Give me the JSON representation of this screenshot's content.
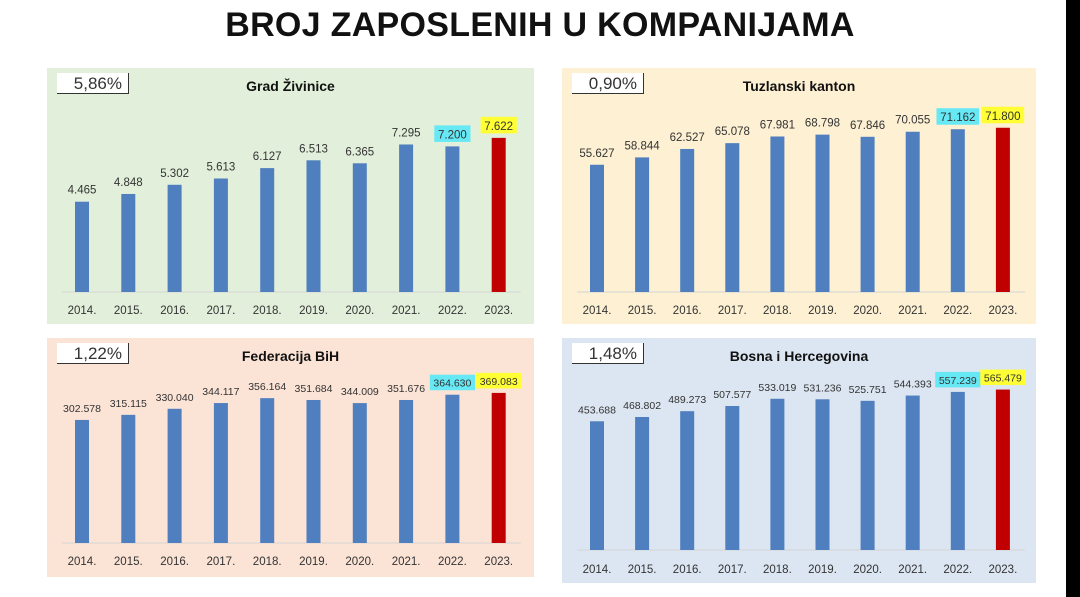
{
  "header": {
    "title": "BROJ ZAPOSLENIH U KOMPANIJAMA"
  },
  "colors": {
    "bar": "#4f7fbe",
    "bar_highlight": "#c00000",
    "label_2022_bg": "#66e8f5",
    "label_2023_bg": "#ffff33"
  },
  "chart_data": [
    {
      "type": "bar",
      "title": "Grad Živinice",
      "growth_label": "5,86%",
      "background": "#e2efda",
      "categories": [
        "2014.",
        "2015.",
        "2016.",
        "2017.",
        "2018.",
        "2019.",
        "2020.",
        "2021.",
        "2022.",
        "2023."
      ],
      "values": [
        4465,
        4848,
        5302,
        5613,
        6127,
        6513,
        6365,
        7295,
        7200,
        7622
      ],
      "data_labels": [
        "4.465",
        "4.848",
        "5.302",
        "5.613",
        "6.127",
        "6.513",
        "6.365",
        "7.295",
        "7.200",
        "7.622"
      ],
      "ylim": [
        0,
        9050
      ],
      "xlabel": "",
      "ylabel": "",
      "grid": false
    },
    {
      "type": "bar",
      "title": "Tuzlanski kanton",
      "growth_label": "0,90%",
      "background": "#fdf0d3",
      "categories": [
        "2014.",
        "2015.",
        "2016.",
        "2017.",
        "2018.",
        "2019.",
        "2020.",
        "2021.",
        "2022.",
        "2023."
      ],
      "values": [
        55627,
        58844,
        62527,
        65078,
        67981,
        68798,
        67846,
        70055,
        71162,
        71800
      ],
      "data_labels": [
        "55.627",
        "58.844",
        "62.527",
        "65.078",
        "67.981",
        "68.798",
        "67.846",
        "70.055",
        "71.162",
        "71.800"
      ],
      "ylim": [
        0,
        80000
      ],
      "xlabel": "",
      "ylabel": "",
      "grid": false
    },
    {
      "type": "bar",
      "title": "Federacija BiH",
      "growth_label": "1,22%",
      "background": "#fbe3d6",
      "categories": [
        "2014.",
        "2015.",
        "2016.",
        "2017.",
        "2018.",
        "2019.",
        "2020.",
        "2021.",
        "2022.",
        "2023."
      ],
      "values": [
        302578,
        315115,
        330040,
        344117,
        356164,
        351684,
        344009,
        351676,
        364630,
        369083
      ],
      "data_labels": [
        "302.578",
        "315.115",
        "330.040",
        "344.117",
        "356.164",
        "351.684",
        "344.009",
        "351.676",
        "364.630",
        "369.083"
      ],
      "ylim": [
        0,
        450000
      ],
      "xlabel": "",
      "ylabel": "",
      "grid": false
    },
    {
      "type": "bar",
      "title": "Bosna i Hercegovina",
      "growth_label": "1,48%",
      "background": "#dce6f2",
      "categories": [
        "2014.",
        "2015.",
        "2016.",
        "2017.",
        "2018.",
        "2019.",
        "2020.",
        "2021.",
        "2022.",
        "2023."
      ],
      "values": [
        453688,
        468802,
        489273,
        507577,
        533019,
        531236,
        525751,
        544393,
        557239,
        565479
      ],
      "data_labels": [
        "453.688",
        "468.802",
        "489.273",
        "507.577",
        "533.019",
        "531.236",
        "525.751",
        "544.393",
        "557.239",
        "565.479"
      ],
      "ylim": [
        0,
        645000
      ],
      "xlabel": "",
      "ylabel": "",
      "grid": false
    }
  ]
}
